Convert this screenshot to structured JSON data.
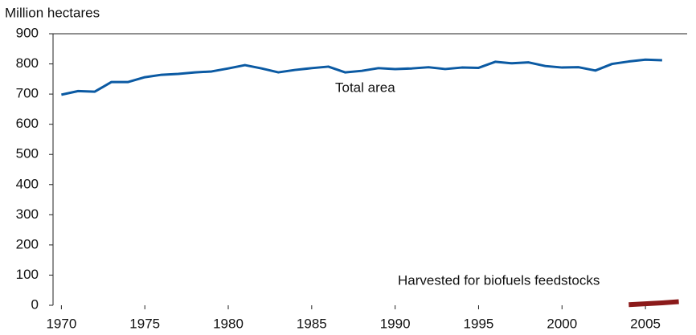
{
  "chart_data": {
    "type": "line",
    "ylabel": "Million hectares",
    "annotations": [
      "Total area",
      "Harvested for biofuels feedstocks"
    ],
    "xlim": [
      1969.5,
      2007.5
    ],
    "xticks": [
      1970,
      1975,
      1980,
      1985,
      1990,
      1995,
      2000,
      2005
    ],
    "ylim": [
      0,
      900
    ],
    "yticks": [
      0,
      100,
      200,
      300,
      400,
      500,
      600,
      700,
      800,
      900
    ],
    "series": [
      {
        "color": "#0b5aa3",
        "x": [
          1970,
          1971,
          1972,
          1973,
          1974,
          1975,
          1976,
          1977,
          1978,
          1979,
          1980,
          1981,
          1982,
          1983,
          1984,
          1985,
          1986,
          1987,
          1988,
          1989,
          1990,
          1991,
          1992,
          1993,
          1994,
          1995,
          1996,
          1997,
          1998,
          1999,
          2000,
          2001,
          2002,
          2003,
          2004,
          2005,
          2006
        ],
        "values": [
          698,
          710,
          708,
          740,
          740,
          756,
          764,
          767,
          772,
          775,
          785,
          796,
          785,
          772,
          780,
          786,
          791,
          772,
          777,
          786,
          783,
          785,
          789,
          783,
          788,
          787,
          807,
          802,
          805,
          793,
          788,
          789,
          778,
          800,
          808,
          814,
          812
        ]
      },
      {
        "color": "#8b1a1a",
        "x": [
          2004,
          2005,
          2006,
          2007
        ],
        "values": [
          2,
          5,
          8,
          12
        ]
      }
    ]
  }
}
